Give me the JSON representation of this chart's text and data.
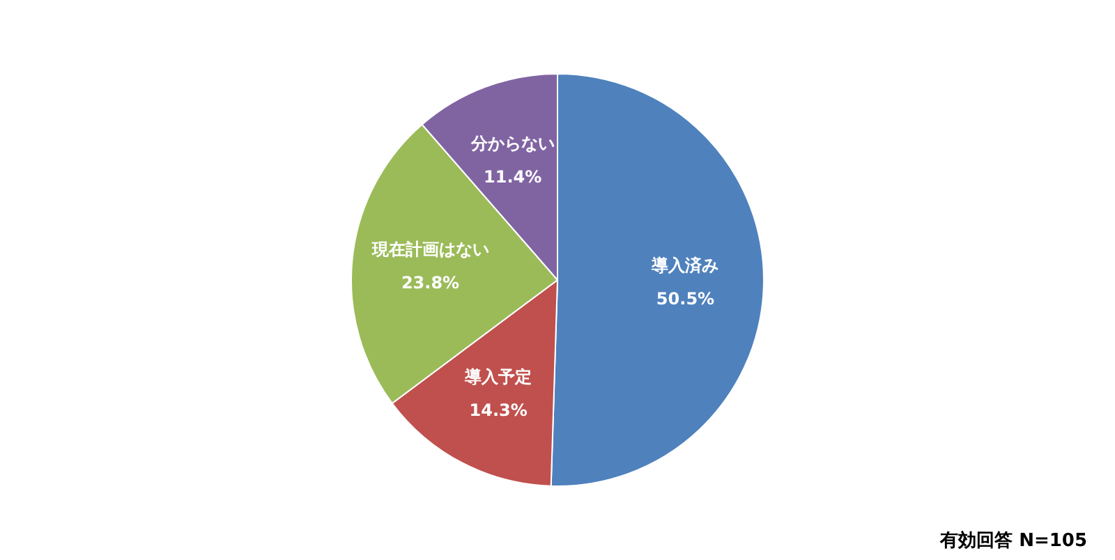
{
  "chart_data": {
    "type": "pie",
    "categories": [
      "導入済み",
      "導入予定",
      "現在計画はない",
      "分からない"
    ],
    "values": [
      50.5,
      14.3,
      23.8,
      11.4
    ],
    "value_labels": [
      "50.5%",
      "14.3%",
      "23.8%",
      "11.4%"
    ],
    "colors": [
      "#4f81bd",
      "#c0504d",
      "#9bbb59",
      "#8064a2"
    ],
    "legend": false,
    "annotations": [
      "有効回答 N=105"
    ]
  }
}
